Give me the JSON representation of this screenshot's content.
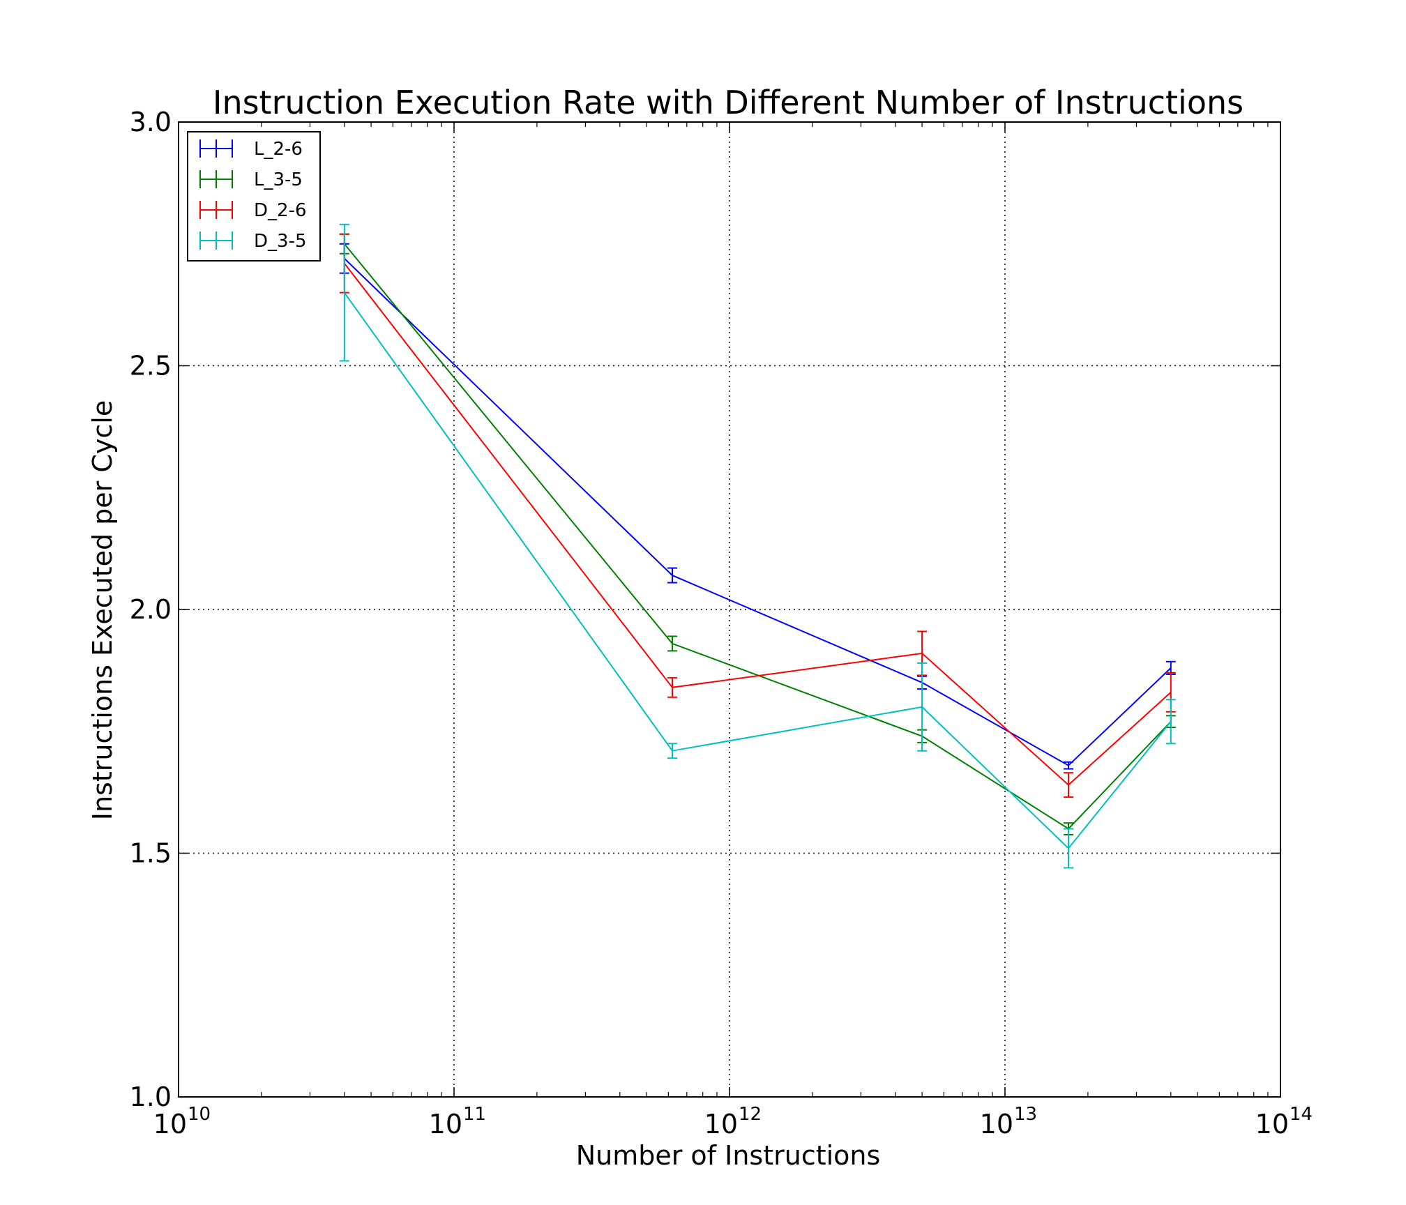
{
  "chart_data": {
    "type": "line",
    "title": "Instruction Execution Rate with Different Number of Instructions",
    "xlabel": "Number of Instructions",
    "ylabel": "Instructions Executed per Cycle",
    "xscale": "log",
    "xlim": [
      10000000000.0,
      100000000000000.0
    ],
    "ylim": [
      1.0,
      3.0
    ],
    "x_ticks": [
      {
        "base": "10",
        "exp": "10",
        "value": 10000000000.0
      },
      {
        "base": "10",
        "exp": "11",
        "value": 100000000000.0
      },
      {
        "base": "10",
        "exp": "12",
        "value": 1000000000000.0
      },
      {
        "base": "10",
        "exp": "13",
        "value": 10000000000000.0
      },
      {
        "base": "10",
        "exp": "14",
        "value": 100000000000000.0
      }
    ],
    "y_ticks": [
      {
        "label": "1.0",
        "value": 1.0
      },
      {
        "label": "1.5",
        "value": 1.5
      },
      {
        "label": "2.0",
        "value": 2.0
      },
      {
        "label": "2.5",
        "value": 2.5
      },
      {
        "label": "3.0",
        "value": 3.0
      }
    ],
    "grid": true,
    "grid_style": "dotted",
    "legend_position": "upper-left",
    "x": [
      40000000000.0,
      620000000000.0,
      5000000000000.0,
      17000000000000.0,
      40000000000000.0
    ],
    "series": [
      {
        "name": "L_2-6",
        "color": "#0000ff",
        "values": [
          2.72,
          2.07,
          1.85,
          1.68,
          1.88
        ],
        "errors": [
          0.03,
          0.015,
          0.013,
          0.007,
          0.013
        ]
      },
      {
        "name": "L_3-5",
        "color": "#008000",
        "values": [
          2.75,
          1.93,
          1.74,
          1.55,
          1.77
        ],
        "errors": [
          0.02,
          0.015,
          0.013,
          0.012,
          0.012
        ]
      },
      {
        "name": "D_2-6",
        "color": "#ff0000",
        "values": [
          2.71,
          1.84,
          1.91,
          1.64,
          1.83
        ],
        "errors": [
          0.06,
          0.02,
          0.045,
          0.025,
          0.04
        ]
      },
      {
        "name": "D_3-5",
        "color": "#00bfbf",
        "values": [
          2.65,
          1.71,
          1.8,
          1.51,
          1.77
        ],
        "errors": [
          0.14,
          0.015,
          0.09,
          0.04,
          0.045
        ]
      }
    ]
  }
}
